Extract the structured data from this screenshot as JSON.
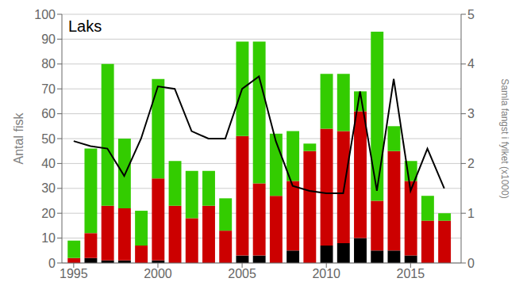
{
  "chart_data": {
    "type": "bar",
    "title": "Laks",
    "x": [
      1995,
      1996,
      1997,
      1998,
      1999,
      2000,
      2001,
      2002,
      2003,
      2004,
      2005,
      2006,
      2007,
      2008,
      2009,
      2010,
      2011,
      2012,
      2013,
      2014,
      2015,
      2016,
      2017
    ],
    "xlim": [
      1994.3,
      2018.0
    ],
    "xticks": [
      1995,
      2000,
      2005,
      2010,
      2015
    ],
    "ylabel": "Antal fisk",
    "y2label": "Samla fangst i fylket (x1000)",
    "ylim": [
      0,
      100
    ],
    "yticks": [
      0,
      10,
      20,
      30,
      40,
      50,
      60,
      70,
      80,
      90,
      100
    ],
    "y2lim": [
      0,
      5
    ],
    "y2ticks": [
      0,
      1,
      2,
      3,
      4,
      5
    ],
    "stacked": true,
    "grid": true,
    "series": [
      {
        "color": "#000000",
        "values": [
          0,
          2,
          1,
          1,
          0,
          1,
          0,
          0,
          0,
          0,
          3,
          3,
          0,
          5,
          0,
          7,
          8,
          10,
          5,
          5,
          3,
          0,
          0
        ]
      },
      {
        "color": "#cc0000",
        "values": [
          2,
          10,
          22,
          21,
          7,
          33,
          23,
          18,
          23,
          13,
          48,
          29,
          27,
          28,
          45,
          47,
          45,
          51,
          20,
          40,
          30,
          17,
          17
        ]
      },
      {
        "color": "#33cc00",
        "values": [
          7,
          34,
          57,
          28,
          14,
          40,
          18,
          19,
          14,
          13,
          38,
          57,
          25,
          20,
          3,
          22,
          23,
          8,
          68,
          10,
          8,
          10,
          3
        ]
      },
      {
        "type": "line",
        "axis": "y2",
        "color": "#000000",
        "values": [
          2.45,
          2.35,
          2.3,
          1.75,
          2.5,
          3.55,
          3.5,
          2.65,
          2.5,
          2.5,
          3.5,
          3.75,
          2.45,
          1.55,
          1.45,
          1.4,
          1.4,
          3.45,
          1.45,
          3.7,
          1.45,
          2.3,
          1.5
        ]
      }
    ]
  }
}
